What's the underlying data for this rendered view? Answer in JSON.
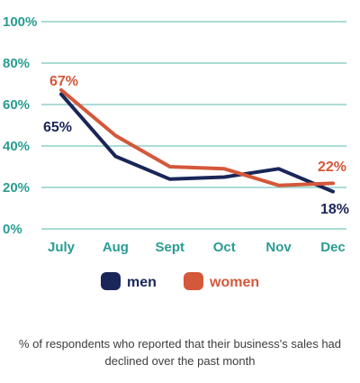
{
  "chart_data": {
    "type": "line",
    "categories": [
      "July",
      "Aug",
      "Sept",
      "Oct",
      "Nov",
      "Dec"
    ],
    "y_ticks": [
      "0%",
      "20%",
      "40%",
      "60%",
      "80%",
      "100%"
    ],
    "ylim": [
      0,
      100
    ],
    "grid": true,
    "series": [
      {
        "name": "men",
        "color": "#1a2659",
        "values": [
          65,
          35,
          24,
          25,
          29,
          18
        ]
      },
      {
        "name": "women",
        "color": "#d4583a",
        "values": [
          67,
          45,
          30,
          29,
          21,
          22
        ]
      }
    ],
    "data_labels": {
      "men_first": "65%",
      "men_last": "18%",
      "women_first": "67%",
      "women_last": "22%"
    },
    "legend": {
      "position": "bottom",
      "men": "men",
      "women": "women"
    },
    "caption": "% of respondents who reported that their business's sales had declined over the past month"
  },
  "colors": {
    "grid": "#8fd1c8",
    "axis_text": "#2a9c92",
    "men": "#1a2659",
    "women": "#d4583a"
  }
}
